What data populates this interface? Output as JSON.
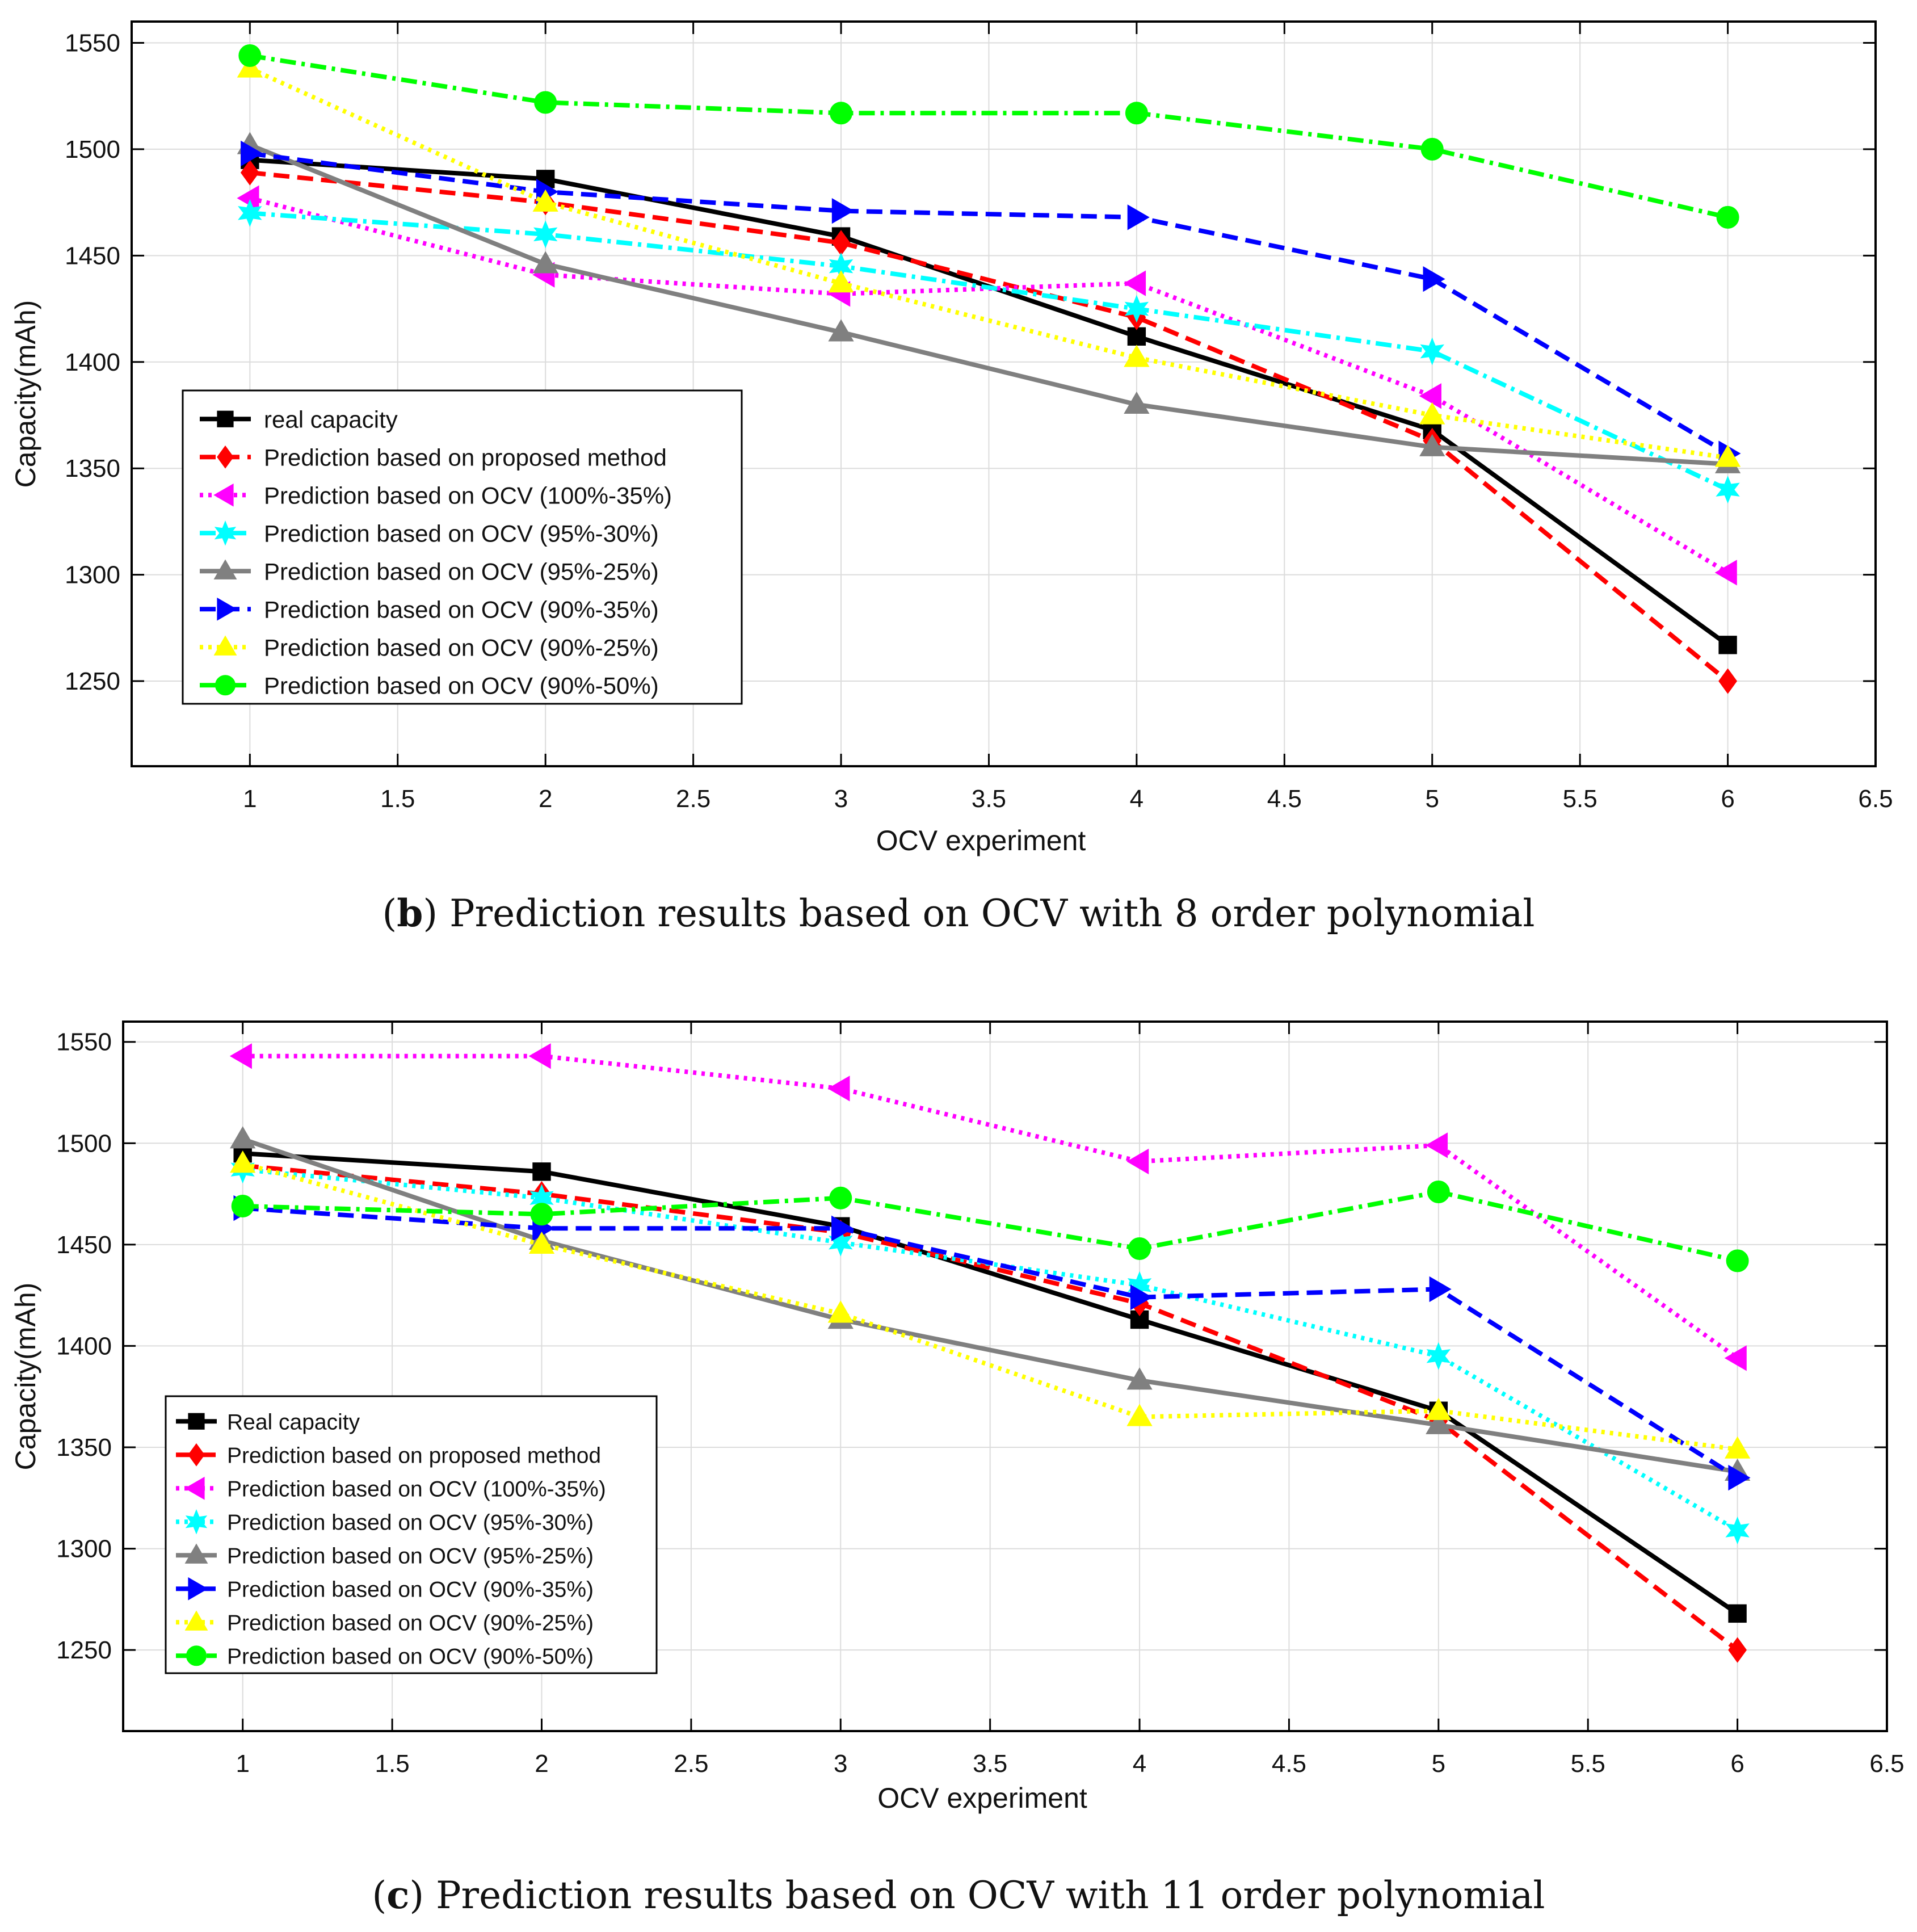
{
  "captions": [
    {
      "letter": "b",
      "prefix": "(",
      "suffix": ") Prediction results based on OCV with 8 order polynomial"
    },
    {
      "letter": "c",
      "prefix": "(",
      "suffix": ") Prediction results based on OCV with 11 order polynomial"
    }
  ],
  "chart_data": [
    {
      "type": "line",
      "title": "",
      "xlabel": "OCV experiment",
      "ylabel": "Capacity(mAh)",
      "xlim": [
        0.6,
        6.5
      ],
      "ylim": [
        1210,
        1560
      ],
      "xticks": [
        1,
        1.5,
        2,
        2.5,
        3,
        3.5,
        4,
        4.5,
        5,
        5.5,
        6,
        6.5
      ],
      "xtick_labels": [
        "1",
        "1.5",
        "2",
        "2.5",
        "3",
        "3.5",
        "4",
        "4.5",
        "5",
        "5.5",
        "6",
        "6.5"
      ],
      "yticks": [
        1250,
        1300,
        1350,
        1400,
        1450,
        1500,
        1550
      ],
      "ytick_labels": [
        "1250",
        "1300",
        "1350",
        "1400",
        "1450",
        "1500",
        "1550"
      ],
      "grid": true,
      "legend_position": "lower-left",
      "x": [
        1,
        2,
        3,
        4,
        5,
        6
      ],
      "series": [
        {
          "name": "real capacity",
          "color": "#000000",
          "dash": "solid",
          "marker": "square",
          "values": [
            1495,
            1486,
            1459,
            1412,
            1368,
            1267
          ]
        },
        {
          "name": "Prediction based on proposed method",
          "color": "#ff0000",
          "dash": "dashed",
          "marker": "diamond",
          "values": [
            1489,
            1475,
            1456,
            1421,
            1363,
            1250
          ]
        },
        {
          "name": "Prediction based on OCV (100%-35%)",
          "color": "#ff00ff",
          "dash": "dotted",
          "marker": "triangle-left",
          "values": [
            1477,
            1441,
            1432,
            1437,
            1384,
            1301
          ]
        },
        {
          "name": "Prediction based on OCV (95%-30%)",
          "color": "#00ffff",
          "dash": "dashdot",
          "marker": "hexagram",
          "values": [
            1470,
            1460,
            1445,
            1425,
            1405,
            1340
          ]
        },
        {
          "name": "Prediction based on OCV (95%-25%)",
          "color": "#808080",
          "dash": "solid",
          "marker": "triangle-up",
          "values": [
            1502,
            1446,
            1414,
            1380,
            1360,
            1352
          ]
        },
        {
          "name": "Prediction based on OCV (90%-35%)",
          "color": "#0000ff",
          "dash": "dashed",
          "marker": "triangle-right",
          "values": [
            1498,
            1480,
            1471,
            1468,
            1439,
            1357
          ]
        },
        {
          "name": "Prediction based on OCV (90%-25%)",
          "color": "#ffff00",
          "dash": "dotted",
          "marker": "triangle-up",
          "values": [
            1538,
            1475,
            1437,
            1402,
            1375,
            1355
          ]
        },
        {
          "name": "Prediction based on OCV (90%-50%)",
          "color": "#00ff00",
          "dash": "dashdot",
          "marker": "circle",
          "values": [
            1544,
            1522,
            1517,
            1517,
            1500,
            1468
          ]
        }
      ]
    },
    {
      "type": "line",
      "title": "",
      "xlabel": "OCV experiment",
      "ylabel": "Capacity(mAh)",
      "xlim": [
        0.6,
        6.5
      ],
      "ylim": [
        1210,
        1560
      ],
      "xticks": [
        1,
        1.5,
        2,
        2.5,
        3,
        3.5,
        4,
        4.5,
        5,
        5.5,
        6,
        6.5
      ],
      "xtick_labels": [
        "1",
        "1.5",
        "2",
        "2.5",
        "3",
        "3.5",
        "4",
        "4.5",
        "5",
        "5.5",
        "6",
        "6.5"
      ],
      "yticks": [
        1250,
        1300,
        1350,
        1400,
        1450,
        1500,
        1550
      ],
      "ytick_labels": [
        "1250",
        "1300",
        "1350",
        "1400",
        "1450",
        "1500",
        "1550"
      ],
      "grid": true,
      "legend_position": "lower-left",
      "x": [
        1,
        2,
        3,
        4,
        5,
        6
      ],
      "series": [
        {
          "name": "Real capacity",
          "color": "#000000",
          "dash": "solid",
          "marker": "square",
          "values": [
            1495,
            1486,
            1459,
            1413,
            1368,
            1268
          ]
        },
        {
          "name": "Prediction based on proposed method",
          "color": "#ff0000",
          "dash": "dashed",
          "marker": "diamond",
          "values": [
            1489,
            1475,
            1456,
            1421,
            1363,
            1250
          ]
        },
        {
          "name": "Prediction based on OCV (100%-35%)",
          "color": "#ff00ff",
          "dash": "dotted",
          "marker": "triangle-left",
          "values": [
            1543,
            1543,
            1527,
            1491,
            1499,
            1394
          ]
        },
        {
          "name": "Prediction based on OCV (95%-30%)",
          "color": "#00ffff",
          "dash": "dotted",
          "marker": "hexagram",
          "values": [
            1487,
            1473,
            1451,
            1430,
            1395,
            1309
          ]
        },
        {
          "name": "Prediction based on OCV (95%-25%)",
          "color": "#808080",
          "dash": "solid",
          "marker": "triangle-up",
          "values": [
            1502,
            1452,
            1413,
            1383,
            1361,
            1338
          ]
        },
        {
          "name": "Prediction based on OCV (90%-35%)",
          "color": "#0000ff",
          "dash": "dashed",
          "marker": "triangle-right",
          "values": [
            1468,
            1458,
            1458,
            1424,
            1428,
            1335
          ]
        },
        {
          "name": "Prediction based on OCV (90%-25%)",
          "color": "#ffff00",
          "dash": "dotted",
          "marker": "triangle-up",
          "values": [
            1490,
            1450,
            1416,
            1365,
            1368,
            1349
          ]
        },
        {
          "name": "Prediction based on OCV (90%-50%)",
          "color": "#00ff00",
          "dash": "dashdot",
          "marker": "circle",
          "values": [
            1469,
            1465,
            1473,
            1448,
            1476,
            1442
          ]
        }
      ]
    }
  ]
}
